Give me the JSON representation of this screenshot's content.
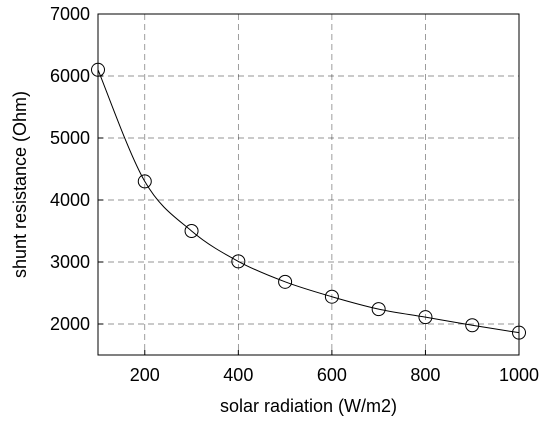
{
  "chart_data": {
    "type": "line",
    "title": "",
    "xlabel": "solar radiation (W/m2)",
    "ylabel": "shunt resistance (Ohm)",
    "xlim": [
      100,
      1000
    ],
    "ylim": [
      1500,
      7000
    ],
    "x_ticks": [
      200,
      400,
      600,
      800,
      1000
    ],
    "y_ticks": [
      2000,
      3000,
      4000,
      5000,
      6000,
      7000
    ],
    "grid": true,
    "marker": "open-circle",
    "series": [
      {
        "x": [
          100,
          200,
          300,
          400,
          500,
          600,
          700,
          800,
          900,
          1000
        ],
        "y": [
          6100,
          4300,
          3500,
          3010,
          2680,
          2440,
          2240,
          2110,
          1980,
          1860
        ]
      }
    ]
  }
}
